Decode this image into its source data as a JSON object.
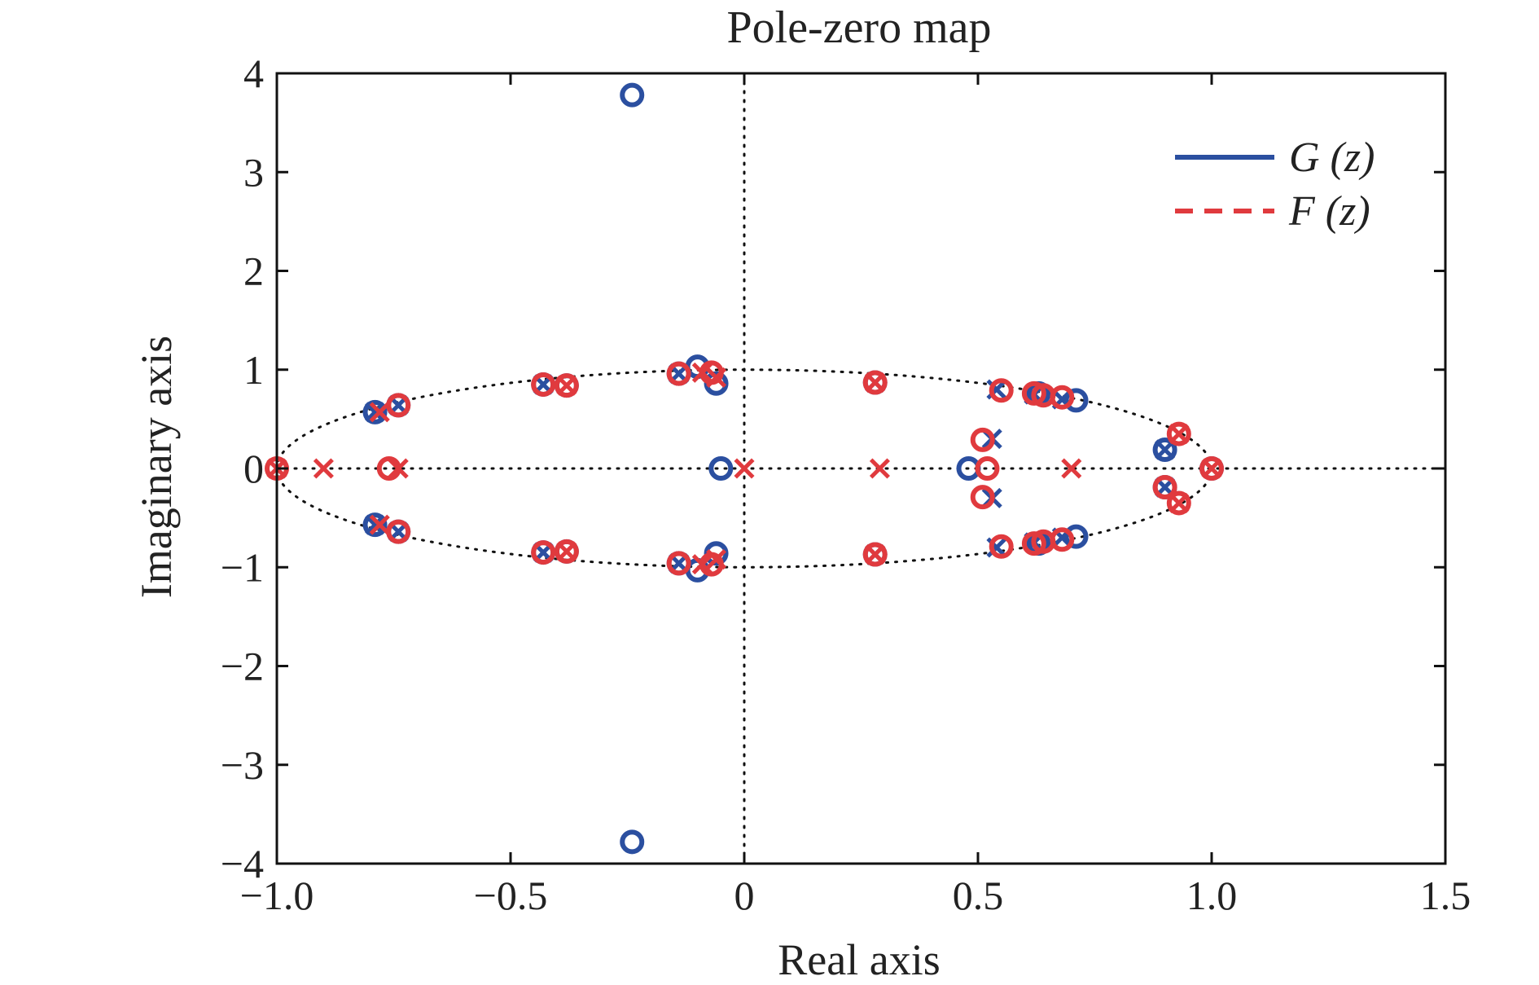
{
  "chart_data": {
    "type": "scatter",
    "title": "Pole-zero map",
    "xlabel": "Real axis",
    "ylabel": "Imaginary axis",
    "xlim": [
      -1.0,
      1.5
    ],
    "ylim": [
      -4,
      4
    ],
    "x_ticks": [
      -1.0,
      -0.5,
      0,
      0.5,
      1.0,
      1.5
    ],
    "x_tick_labels": [
      "−1.0",
      "−0.5",
      "0",
      "0.5",
      "1.0",
      "1.5"
    ],
    "y_ticks": [
      -4,
      -3,
      -2,
      -1,
      0,
      1,
      2,
      3,
      4
    ],
    "y_tick_labels": [
      "−4",
      "−3",
      "−2",
      "−1",
      "0",
      "1",
      "2",
      "3",
      "4"
    ],
    "grid": false,
    "reference_lines": "dotted x = 0, y = 0 and unit circle",
    "legend": {
      "placement": "top-right",
      "entries": [
        {
          "name": "G (z)",
          "color": "#2b4fa0",
          "line": "solid"
        },
        {
          "name": "F (z)",
          "color": "#e03a3e",
          "line": "dashed"
        }
      ]
    },
    "series": [
      {
        "name": "G (z)",
        "color": "#2b4fa0",
        "zeros": [
          {
            "x": -0.24,
            "y": 3.78
          },
          {
            "x": -0.24,
            "y": -3.78
          },
          {
            "x": -0.79,
            "y": 0.57
          },
          {
            "x": -0.79,
            "y": -0.57
          },
          {
            "x": -0.74,
            "y": 0.64
          },
          {
            "x": -0.74,
            "y": -0.64
          },
          {
            "x": -0.43,
            "y": 0.85
          },
          {
            "x": -0.43,
            "y": -0.85
          },
          {
            "x": -0.38,
            "y": 0.84
          },
          {
            "x": -0.38,
            "y": -0.84
          },
          {
            "x": -0.14,
            "y": 0.96
          },
          {
            "x": -0.14,
            "y": -0.96
          },
          {
            "x": -0.1,
            "y": 1.03
          },
          {
            "x": -0.1,
            "y": -1.03
          },
          {
            "x": -0.06,
            "y": 0.86
          },
          {
            "x": -0.06,
            "y": -0.86
          },
          {
            "x": -0.05,
            "y": 0.0
          },
          {
            "x": 0.28,
            "y": 0.87
          },
          {
            "x": 0.28,
            "y": -0.87
          },
          {
            "x": 0.48,
            "y": 0.0
          },
          {
            "x": 0.63,
            "y": 0.76
          },
          {
            "x": 0.63,
            "y": -0.76
          },
          {
            "x": 0.71,
            "y": 0.69
          },
          {
            "x": 0.71,
            "y": -0.69
          },
          {
            "x": 0.9,
            "y": 0.19
          },
          {
            "x": 0.9,
            "y": -0.19
          },
          {
            "x": 1.0,
            "y": 0.0
          }
        ],
        "poles": [
          {
            "x": -0.79,
            "y": 0.57
          },
          {
            "x": -0.79,
            "y": -0.57
          },
          {
            "x": -0.74,
            "y": 0.64
          },
          {
            "x": -0.74,
            "y": -0.64
          },
          {
            "x": -0.43,
            "y": 0.85
          },
          {
            "x": -0.43,
            "y": -0.85
          },
          {
            "x": -0.14,
            "y": 0.96
          },
          {
            "x": -0.14,
            "y": -0.96
          },
          {
            "x": 0.28,
            "y": 0.87
          },
          {
            "x": 0.28,
            "y": -0.87
          },
          {
            "x": 0.54,
            "y": 0.8
          },
          {
            "x": 0.54,
            "y": -0.8
          },
          {
            "x": 0.53,
            "y": 0.3
          },
          {
            "x": 0.53,
            "y": -0.3
          },
          {
            "x": 0.62,
            "y": 0.75
          },
          {
            "x": 0.62,
            "y": -0.75
          },
          {
            "x": 0.68,
            "y": 0.7
          },
          {
            "x": 0.68,
            "y": -0.7
          },
          {
            "x": 0.9,
            "y": 0.19
          },
          {
            "x": 0.9,
            "y": -0.19
          }
        ]
      },
      {
        "name": "F (z)",
        "color": "#e03a3e",
        "zeros": [
          {
            "x": -1.0,
            "y": 0.0
          },
          {
            "x": -0.76,
            "y": 0.0
          },
          {
            "x": -0.74,
            "y": 0.64
          },
          {
            "x": -0.74,
            "y": -0.64
          },
          {
            "x": -0.43,
            "y": 0.85
          },
          {
            "x": -0.43,
            "y": -0.85
          },
          {
            "x": -0.38,
            "y": 0.84
          },
          {
            "x": -0.38,
            "y": -0.84
          },
          {
            "x": -0.14,
            "y": 0.96
          },
          {
            "x": -0.14,
            "y": -0.96
          },
          {
            "x": -0.07,
            "y": 0.97
          },
          {
            "x": -0.07,
            "y": -0.97
          },
          {
            "x": 0.28,
            "y": 0.87
          },
          {
            "x": 0.28,
            "y": -0.87
          },
          {
            "x": 0.51,
            "y": 0.29
          },
          {
            "x": 0.51,
            "y": -0.29
          },
          {
            "x": 0.52,
            "y": 0.0
          },
          {
            "x": 0.55,
            "y": 0.79
          },
          {
            "x": 0.55,
            "y": -0.79
          },
          {
            "x": 0.62,
            "y": 0.76
          },
          {
            "x": 0.62,
            "y": -0.76
          },
          {
            "x": 0.64,
            "y": 0.74
          },
          {
            "x": 0.64,
            "y": -0.74
          },
          {
            "x": 0.68,
            "y": 0.72
          },
          {
            "x": 0.68,
            "y": -0.72
          },
          {
            "x": 0.9,
            "y": -0.19
          },
          {
            "x": 0.93,
            "y": 0.35
          },
          {
            "x": 0.93,
            "y": -0.35
          },
          {
            "x": 1.0,
            "y": 0.0
          }
        ],
        "poles": [
          {
            "x": -1.0,
            "y": 0.0
          },
          {
            "x": -0.9,
            "y": 0.0
          },
          {
            "x": -0.74,
            "y": 0.0
          },
          {
            "x": -0.78,
            "y": 0.57
          },
          {
            "x": -0.78,
            "y": -0.57
          },
          {
            "x": -0.38,
            "y": 0.84
          },
          {
            "x": -0.38,
            "y": -0.84
          },
          {
            "x": -0.09,
            "y": 0.97
          },
          {
            "x": -0.09,
            "y": -0.97
          },
          {
            "x": -0.06,
            "y": 0.92
          },
          {
            "x": -0.06,
            "y": -0.92
          },
          {
            "x": 0.0,
            "y": 0.0
          },
          {
            "x": 0.29,
            "y": 0.0
          },
          {
            "x": 0.28,
            "y": 0.87
          },
          {
            "x": 0.28,
            "y": -0.87
          },
          {
            "x": 0.7,
            "y": 0.0
          },
          {
            "x": 0.93,
            "y": 0.35
          },
          {
            "x": 0.93,
            "y": -0.35
          },
          {
            "x": 1.0,
            "y": 0.0
          }
        ]
      }
    ]
  }
}
